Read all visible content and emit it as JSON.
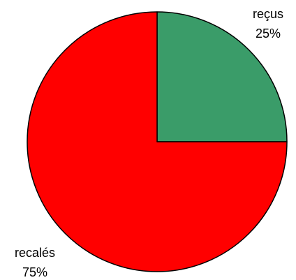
{
  "chart_data": {
    "type": "pie",
    "title": "",
    "start_angle_deg": 0,
    "direction": "clockwise",
    "slices": [
      {
        "name": "reçus",
        "percent_label": "25%",
        "value": 25,
        "color": "#3a9c69"
      },
      {
        "name": "recalés",
        "percent_label": "75%",
        "value": 75,
        "color": "#ff0000"
      }
    ],
    "stroke_color": "#000000"
  }
}
